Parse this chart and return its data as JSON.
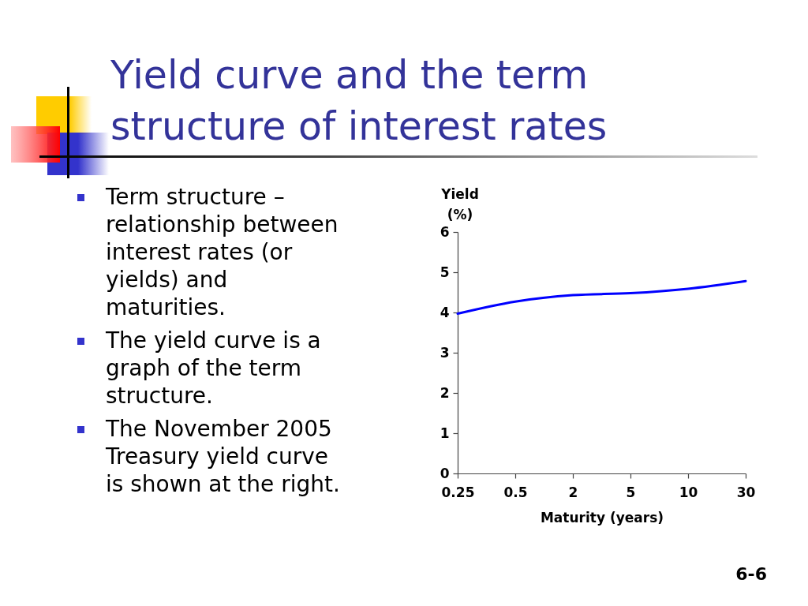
{
  "chart_data": {
    "type": "line",
    "title": "Yield curve and the term structure of interest rates",
    "xlabel": "Maturity (years)",
    "ylabel": "Yield (%)",
    "categories": [
      "0.25",
      "0.5",
      "2",
      "5",
      "10",
      "30"
    ],
    "values": [
      3.97,
      4.27,
      4.43,
      4.48,
      4.59,
      4.78
    ],
    "color": "#0000ff",
    "ylim": [
      0,
      6
    ],
    "yticks": [
      0,
      1,
      2,
      3,
      4,
      5,
      6
    ],
    "annotations": [
      "Term structure – relationship between interest rates (or yields) and maturities.",
      "The yield curve is a graph of the term structure.",
      "The November 2005 Treasury yield curve is shown at the right.",
      "6-6"
    ]
  }
}
